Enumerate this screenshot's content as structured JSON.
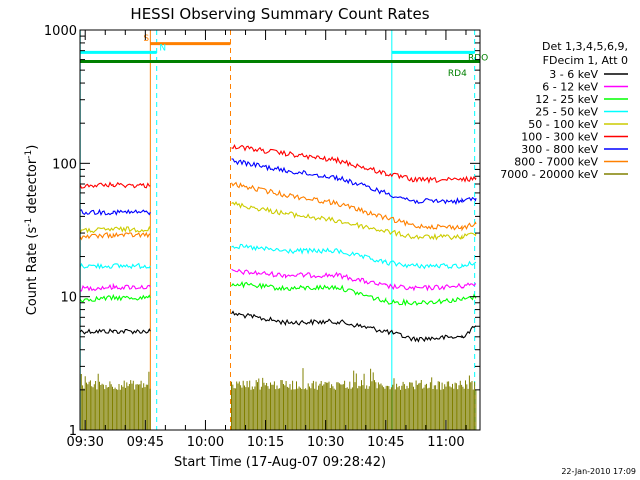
{
  "chart_data": {
    "type": "line",
    "title": "HESSI Observing Summary Count Rates",
    "xlabel": "Start Time (17-Aug-07 09:28:42)",
    "ylabel_parts": [
      "Count Rate (s",
      "-1",
      " detector",
      "-1",
      ")"
    ],
    "footer_date": "22-Jan-2010 17:09",
    "y_scale": "log",
    "ylim": [
      1,
      1000
    ],
    "y_ticks": [
      {
        "value": 1,
        "label": "1"
      },
      {
        "value": 10,
        "label": "10"
      },
      {
        "value": 100,
        "label": "100"
      },
      {
        "value": 1000,
        "label": "1000"
      }
    ],
    "xlim": [
      "09:28:42",
      "11:08:30"
    ],
    "x_ticks": [
      "09:30",
      "09:45",
      "10:00",
      "10:15",
      "10:30",
      "10:45",
      "11:00"
    ],
    "grid": false,
    "legend_position": "right",
    "legend_header": [
      "Det 1,3,4,5,6,9,",
      "FDecim 1, Att 0"
    ],
    "series": [
      {
        "name": "3 - 6 keV",
        "color": "#000000",
        "segments": [
          {
            "x": [
              "09:28:42",
              "09:37:00",
              "09:46:15"
            ],
            "y": [
              5.5,
              5.5,
              5.5
            ]
          },
          {
            "x": [
              "10:06:30",
              "10:20:00",
              "10:33:00",
              "10:45:00",
              "10:52:00",
              "11:04:00",
              "11:07:30"
            ],
            "y": [
              7.5,
              6.4,
              6.5,
              5.5,
              4.8,
              5.0,
              6.0
            ]
          }
        ]
      },
      {
        "name": "6 - 12 keV",
        "color": "#ff00ff",
        "segments": [
          {
            "x": [
              "09:28:42",
              "09:37:00",
              "09:46:15"
            ],
            "y": [
              11.5,
              11.8,
              11.8
            ]
          },
          {
            "x": [
              "10:06:30",
              "10:20:00",
              "10:33:00",
              "10:45:00",
              "10:52:00",
              "11:04:00",
              "11:07:30"
            ],
            "y": [
              15.5,
              14.5,
              14.5,
              12.0,
              11.5,
              12.0,
              12.5
            ]
          }
        ]
      },
      {
        "name": "12 - 25 keV",
        "color": "#00ff00",
        "segments": [
          {
            "x": [
              "09:28:42",
              "09:37:00",
              "09:46:15"
            ],
            "y": [
              9.5,
              9.8,
              9.8
            ]
          },
          {
            "x": [
              "10:06:30",
              "10:20:00",
              "10:33:00",
              "10:45:00",
              "10:52:00",
              "11:04:00",
              "11:07:30"
            ],
            "y": [
              12.5,
              11.5,
              11.8,
              9.2,
              9.0,
              9.5,
              10.0
            ]
          }
        ]
      },
      {
        "name": "25 - 50 keV",
        "color": "#00ffff",
        "segments": [
          {
            "x": [
              "09:28:42",
              "09:37:00",
              "09:46:15"
            ],
            "y": [
              17,
              17,
              17
            ]
          },
          {
            "x": [
              "10:06:30",
              "10:20:00",
              "10:33:00",
              "10:45:00",
              "10:52:00",
              "11:04:00",
              "11:07:30"
            ],
            "y": [
              24,
              22,
              22,
              18,
              17,
              17,
              18
            ]
          }
        ]
      },
      {
        "name": "50 - 100 keV",
        "color": "#cccc00",
        "segments": [
          {
            "x": [
              "09:28:42",
              "09:37:00",
              "09:46:15"
            ],
            "y": [
              31,
              32,
              32
            ]
          },
          {
            "x": [
              "10:06:30",
              "10:20:00",
              "10:33:00",
              "10:45:00",
              "10:52:00",
              "11:04:00",
              "11:07:30"
            ],
            "y": [
              50,
              42,
              37,
              31,
              28,
              28,
              30
            ]
          }
        ]
      },
      {
        "name": "100 - 300 keV",
        "color": "#ff0000",
        "segments": [
          {
            "x": [
              "09:28:42",
              "09:37:00",
              "09:46:15"
            ],
            "y": [
              68,
              69,
              68
            ]
          },
          {
            "x": [
              "10:06:30",
              "10:20:00",
              "10:33:00",
              "10:45:00",
              "10:52:00",
              "11:04:00",
              "11:07:30"
            ],
            "y": [
              135,
              118,
              105,
              84,
              75,
              75,
              78
            ]
          }
        ]
      },
      {
        "name": "300 - 800 keV",
        "color": "#0000ff",
        "segments": [
          {
            "x": [
              "09:28:42",
              "09:37:00",
              "09:46:15"
            ],
            "y": [
              43,
              43,
              43
            ]
          },
          {
            "x": [
              "10:06:30",
              "10:20:00",
              "10:33:00",
              "10:45:00",
              "10:52:00",
              "11:04:00",
              "11:07:30"
            ],
            "y": [
              105,
              88,
              78,
              60,
              52,
              52,
              55
            ]
          }
        ]
      },
      {
        "name": "800 - 7000 keV",
        "color": "#ff8000",
        "segments": [
          {
            "x": [
              "09:28:42",
              "09:37:00",
              "09:46:15"
            ],
            "y": [
              28,
              29,
              29
            ]
          },
          {
            "x": [
              "10:06:30",
              "10:20:00",
              "10:33:00",
              "10:45:00",
              "10:52:00",
              "11:04:00",
              "11:07:30"
            ],
            "y": [
              70,
              58,
              50,
              39,
              34,
              33,
              35
            ]
          }
        ]
      },
      {
        "name": "7000 - 20000 keV",
        "color": "#808000",
        "segments": [
          {
            "x": [
              "09:28:42",
              "09:46:15"
            ],
            "y": [
              2.0,
              2.0
            ]
          },
          {
            "x": [
              "10:06:30",
              "11:07:30"
            ],
            "y": [
              2.0,
              2.0
            ]
          }
        ]
      }
    ],
    "annotations": {
      "verticals": [
        {
          "time": "09:28:45",
          "color": "#00ffff",
          "style": "solid"
        },
        {
          "time": "09:46:15",
          "color": "#ff8000",
          "style": "solid"
        },
        {
          "time": "09:47:50",
          "color": "#00ffff",
          "style": "dashed"
        },
        {
          "time": "10:06:15",
          "color": "#ff8000",
          "style": "dashed"
        },
        {
          "time": "10:46:30",
          "color": "#00ffff",
          "style": "solid"
        },
        {
          "time": "11:07:10",
          "color": "#00ffff",
          "style": "dashed"
        }
      ],
      "bars": [
        {
          "x1": "09:28:42",
          "x2": "09:47:50",
          "y": 680,
          "color": "#00ffff",
          "width": 3
        },
        {
          "x1": "10:46:30",
          "x2": "11:07:10",
          "y": 680,
          "color": "#00ffff",
          "width": 3
        },
        {
          "x1": "09:46:15",
          "x2": "10:06:15",
          "y": 790,
          "color": "#ff8000",
          "width": 3
        },
        {
          "x1": "09:28:42",
          "x2": "11:08:30",
          "y": 580,
          "color": "#008000",
          "width": 3
        }
      ],
      "labels": [
        {
          "text": "S",
          "time": "09:44:30",
          "y": 830,
          "color": "#ff8000"
        },
        {
          "text": "N",
          "time": "09:48:30",
          "y": 700,
          "color": "#00ffff"
        },
        {
          "text": "RD4",
          "time": "11:00:30",
          "y": 450,
          "color": "#008000"
        },
        {
          "text": "RDO",
          "time": "11:05:30",
          "y": 590,
          "color": "#008000"
        }
      ]
    }
  }
}
